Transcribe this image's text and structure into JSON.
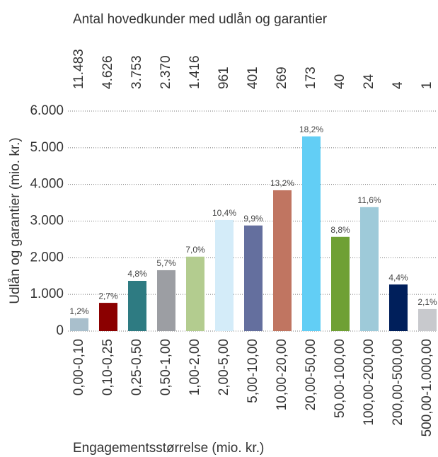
{
  "chart_data": {
    "type": "bar",
    "title": "Antal hovedkunder med udlån og garantier",
    "x_label": "Engagementsstørrelse (mio. kr.)",
    "y_label": "Udlån og garantier (mio. kr.)",
    "categories": [
      "0,00-0,10",
      "0,10-0,25",
      "0,25-0,50",
      "0,50-1,00",
      "1,00-2,00",
      "2,00-5,00",
      "5,00-10,00",
      "10,00-20,00",
      "20,00-50,00",
      "50,00-100,00",
      "100,00-200,00",
      "200,00-500,00",
      "500,00-1.000,00"
    ],
    "values": [
      350,
      770,
      1370,
      1660,
      2030,
      3030,
      2880,
      3840,
      5310,
      2570,
      3380,
      1270,
      600
    ],
    "shares": [
      1.2,
      2.7,
      4.8,
      5.7,
      7.0,
      10.4,
      9.9,
      13.2,
      18.2,
      8.8,
      11.6,
      4.4,
      2.1
    ],
    "share_labels": [
      "1,2%",
      "2,7%",
      "4,8%",
      "5,7%",
      "7,0%",
      "10,4%",
      "9,9%",
      "13,2%",
      "18,2%",
      "8,8%",
      "11,6%",
      "4,4%",
      "2,1%"
    ],
    "customers": [
      {
        "value": 11483,
        "label": "11.483"
      },
      {
        "value": 4626,
        "label": "4.626"
      },
      {
        "value": 3753,
        "label": "3.753"
      },
      {
        "value": 2370,
        "label": "2.370"
      },
      {
        "value": 1416,
        "label": "1.416"
      },
      961,
      401,
      269,
      173,
      40,
      24,
      4,
      1
    ],
    "colors": [
      "#a9bfcc",
      "#8b0000",
      "#2e7b82",
      "#9c9ea3",
      "#b3cc8f",
      "#d4ecf9",
      "#646f9e",
      "#c07561",
      "#62cef5",
      "#6fa034",
      "#9ecad9",
      "#001f5b",
      "#c8c9cd"
    ],
    "ylim": [
      0,
      6000
    ],
    "yticks": [
      0,
      {
        "value": 1000,
        "label": "1.000"
      },
      {
        "value": 2000,
        "label": "2.000"
      },
      {
        "value": 3000,
        "label": "3.000"
      },
      {
        "value": 4000,
        "label": "4.000"
      },
      {
        "value": 5000,
        "label": "5.000"
      },
      {
        "value": 6000,
        "label": "6.000"
      }
    ],
    "grid": true
  }
}
